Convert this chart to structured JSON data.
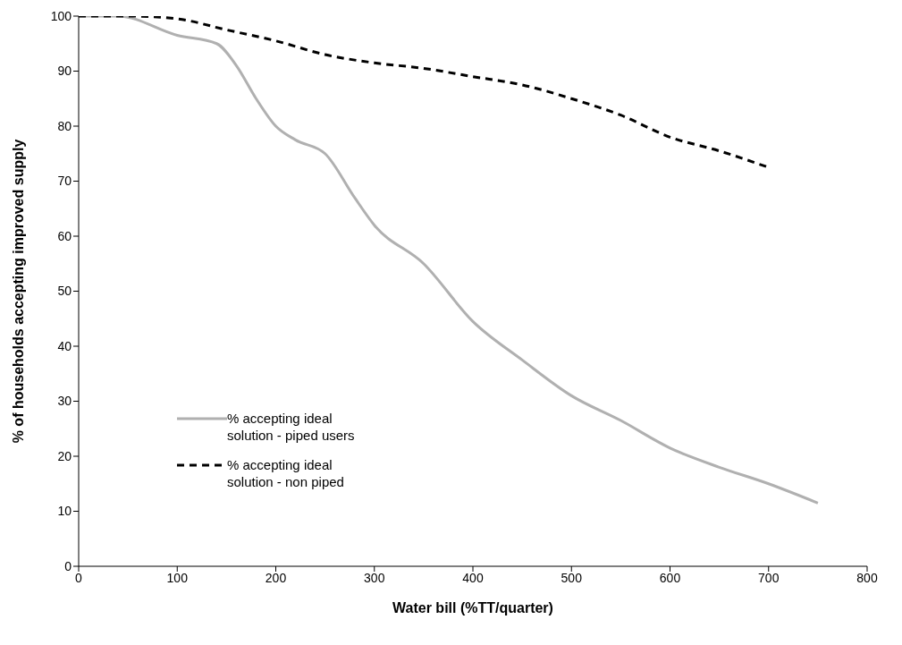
{
  "chart_data": {
    "type": "line",
    "xlabel": "Water bill (%TT/quarter)",
    "ylabel": "% of households accepting improved supply",
    "xlim": [
      0,
      800
    ],
    "xticks": [
      0,
      100,
      200,
      300,
      400,
      500,
      600,
      700,
      800
    ],
    "ylim": [
      0,
      100
    ],
    "yticks": [
      0,
      10,
      20,
      30,
      40,
      50,
      60,
      70,
      80,
      90,
      100
    ],
    "grid": false,
    "legend": "bottom left",
    "marker": "none",
    "series": [
      {
        "name": "% accepting ideal solution - piped users",
        "color": "#b0b0b0",
        "line_style": "solid",
        "x": [
          0,
          40,
          100,
          140,
          160,
          180,
          200,
          220,
          250,
          280,
          300,
          350,
          400,
          450,
          500,
          550,
          600,
          650,
          700,
          750
        ],
        "values": [
          100,
          100,
          96.5,
          95,
          91,
          85,
          80,
          77.5,
          75,
          67,
          62,
          55,
          44.5,
          37.5,
          31,
          26.5,
          21.5,
          18,
          15,
          11.5
        ]
      },
      {
        "name": "% accepting ideal solution - non piped",
        "color": "#000000",
        "line_style": "dashed",
        "x": [
          0,
          50,
          100,
          150,
          200,
          250,
          300,
          350,
          400,
          450,
          500,
          550,
          600,
          650,
          700
        ],
        "values": [
          100,
          100,
          99.5,
          97.5,
          95.5,
          93,
          91.5,
          90.5,
          89,
          87.5,
          85,
          82,
          78,
          75.5,
          72.5
        ]
      }
    ]
  }
}
